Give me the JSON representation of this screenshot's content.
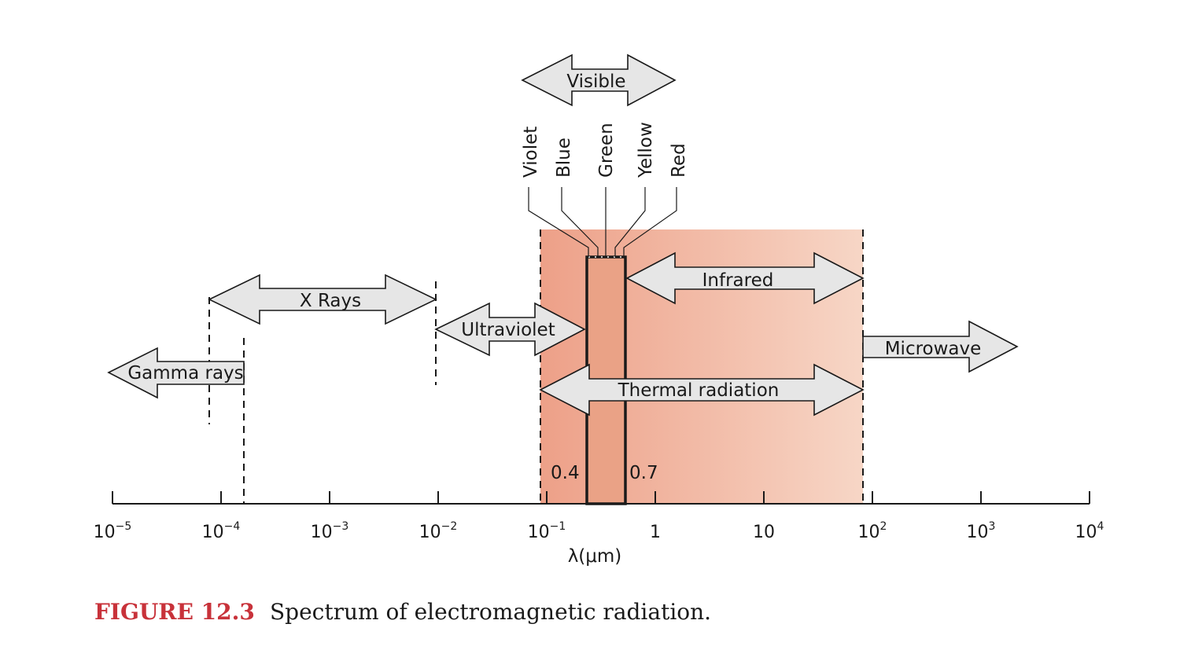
{
  "axis": {
    "ticks": [
      {
        "base": "10",
        "exp": "−5"
      },
      {
        "base": "10",
        "exp": "−4"
      },
      {
        "base": "10",
        "exp": "−3"
      },
      {
        "base": "10",
        "exp": "−2"
      },
      {
        "base": "10",
        "exp": "−1"
      },
      {
        "base": "1",
        "exp": ""
      },
      {
        "base": "10",
        "exp": ""
      },
      {
        "base": "10",
        "exp": "2"
      },
      {
        "base": "10",
        "exp": "3"
      },
      {
        "base": "10",
        "exp": "4"
      }
    ],
    "label": "λ(μm)",
    "scale": "log",
    "range_um": [
      1e-05,
      10000
    ]
  },
  "bands": {
    "gamma": "Gamma rays",
    "xray": "X Rays",
    "uv": "Ultraviolet",
    "visible": "Visible",
    "infrared": "Infrared",
    "thermal": "Thermal radiation",
    "microwave": "Microwave"
  },
  "colors_list": [
    "Violet",
    "Blue",
    "Green",
    "Yellow",
    "Red"
  ],
  "visible_bounds": {
    "low": "0.4",
    "high": "0.7"
  },
  "caption": {
    "label": "FIGURE 12.3",
    "text": "Spectrum of electromagnetic radiation."
  },
  "style": {
    "thermal_fill_left": "#eda088",
    "thermal_fill_right": "#f7d6c6",
    "arrow_fill": "#e6e6e6",
    "caption_color": "#c8323a"
  }
}
